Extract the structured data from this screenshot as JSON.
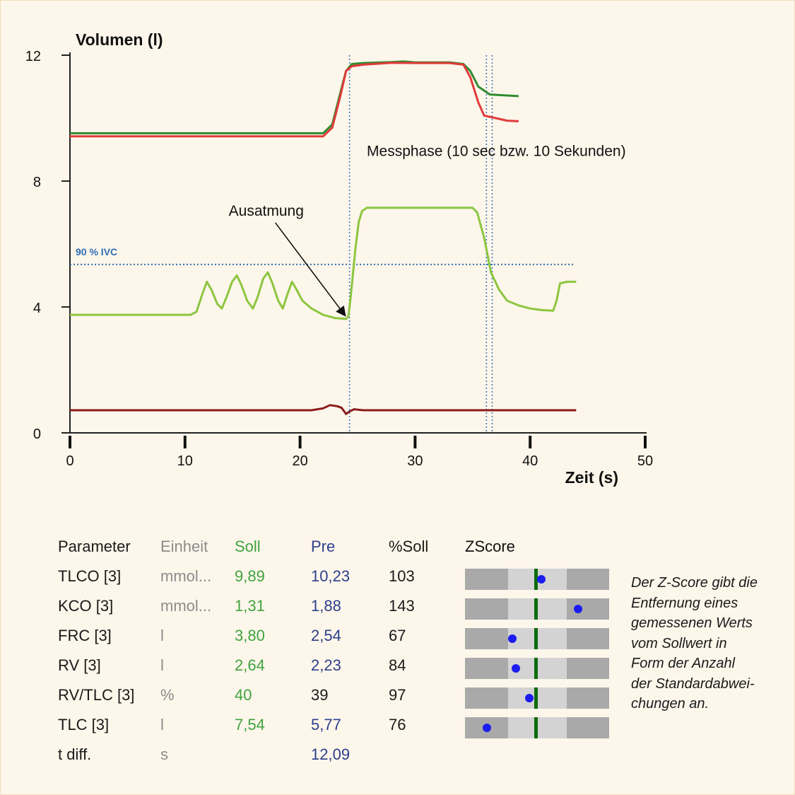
{
  "chart_data": {
    "type": "line",
    "ylabel": "Volumen (l)",
    "xlabel": "Zeit (s)",
    "xlim": [
      0,
      50
    ],
    "ylim": [
      0,
      12
    ],
    "x_ticks": [
      0,
      10,
      20,
      30,
      40,
      50
    ],
    "y_ticks": [
      0,
      4,
      8,
      12
    ],
    "grid": false,
    "series": [
      {
        "color": "#2e8b2e",
        "points": [
          [
            0,
            9.52
          ],
          [
            22,
            9.52
          ],
          [
            22.8,
            9.8
          ],
          [
            23.5,
            10.8
          ],
          [
            24,
            11.5
          ],
          [
            24.5,
            11.72
          ],
          [
            25.5,
            11.75
          ],
          [
            28,
            11.78
          ],
          [
            29,
            11.8
          ],
          [
            30,
            11.77
          ],
          [
            33,
            11.77
          ],
          [
            34.2,
            11.72
          ],
          [
            34.8,
            11.5
          ],
          [
            35.5,
            11.0
          ],
          [
            36.5,
            10.75
          ],
          [
            38,
            10.72
          ],
          [
            39,
            10.7
          ]
        ]
      },
      {
        "color": "#e03a3a",
        "points": [
          [
            0,
            9.42
          ],
          [
            22,
            9.42
          ],
          [
            22.8,
            9.7
          ],
          [
            23.5,
            10.7
          ],
          [
            24,
            11.5
          ],
          [
            24.5,
            11.65
          ],
          [
            25.5,
            11.7
          ],
          [
            28,
            11.76
          ],
          [
            30,
            11.75
          ],
          [
            33,
            11.75
          ],
          [
            34.2,
            11.7
          ],
          [
            34.8,
            11.3
          ],
          [
            35.5,
            10.5
          ],
          [
            36,
            10.08
          ],
          [
            37,
            10.0
          ],
          [
            38,
            9.92
          ],
          [
            39,
            9.9
          ]
        ]
      },
      {
        "color": "#8cc63f",
        "points": [
          [
            0,
            3.75
          ],
          [
            10.5,
            3.75
          ],
          [
            11,
            3.85
          ],
          [
            11.5,
            4.4
          ],
          [
            11.9,
            4.8
          ],
          [
            12.3,
            4.55
          ],
          [
            12.8,
            4.1
          ],
          [
            13.2,
            3.95
          ],
          [
            13.6,
            4.3
          ],
          [
            14.1,
            4.8
          ],
          [
            14.5,
            5.0
          ],
          [
            14.9,
            4.7
          ],
          [
            15.4,
            4.2
          ],
          [
            15.9,
            3.95
          ],
          [
            16.3,
            4.3
          ],
          [
            16.8,
            4.9
          ],
          [
            17.2,
            5.1
          ],
          [
            17.6,
            4.75
          ],
          [
            18.1,
            4.2
          ],
          [
            18.5,
            3.95
          ],
          [
            18.9,
            4.4
          ],
          [
            19.3,
            4.8
          ],
          [
            19.7,
            4.55
          ],
          [
            20.2,
            4.2
          ],
          [
            21,
            3.95
          ],
          [
            22,
            3.75
          ],
          [
            23,
            3.65
          ],
          [
            24,
            3.62
          ],
          [
            24.2,
            3.7
          ],
          [
            24.4,
            4.3
          ],
          [
            24.8,
            5.8
          ],
          [
            25.1,
            6.7
          ],
          [
            25.4,
            7.05
          ],
          [
            25.8,
            7.15
          ],
          [
            35,
            7.15
          ],
          [
            35.4,
            7.0
          ],
          [
            36,
            6.2
          ],
          [
            36.6,
            5.1
          ],
          [
            37.3,
            4.55
          ],
          [
            38,
            4.2
          ],
          [
            39,
            4.05
          ],
          [
            40,
            3.95
          ],
          [
            41,
            3.9
          ],
          [
            42,
            3.88
          ],
          [
            42.3,
            4.2
          ],
          [
            42.6,
            4.75
          ],
          [
            43.2,
            4.8
          ],
          [
            44,
            4.8
          ]
        ]
      },
      {
        "color": "#8b1a1a",
        "points": [
          [
            0,
            0.72
          ],
          [
            21,
            0.72
          ],
          [
            22,
            0.78
          ],
          [
            22.6,
            0.88
          ],
          [
            23.2,
            0.85
          ],
          [
            23.6,
            0.8
          ],
          [
            24,
            0.6
          ],
          [
            24.3,
            0.68
          ],
          [
            24.7,
            0.75
          ],
          [
            25.5,
            0.72
          ],
          [
            44,
            0.72
          ]
        ]
      }
    ],
    "reference_lines": {
      "horizontal": [
        {
          "y": 5.35,
          "label": "90 % IVC",
          "color": "#2f6fb8"
        }
      ],
      "vertical": [
        {
          "x": 24.3
        },
        {
          "x": 36.2
        },
        {
          "x": 36.7
        }
      ]
    },
    "annotations": [
      {
        "text": "Messphase (10 sec bzw. 10 Sekunden)",
        "x": 25.8,
        "y": 8.8
      },
      {
        "text": "Ausatmung",
        "x": 13.8,
        "y": 6.9,
        "arrow_to": [
          24.0,
          3.65
        ]
      }
    ]
  },
  "table": {
    "headers": {
      "param": "Parameter",
      "unit": "Einheit",
      "soll": "Soll",
      "pre": "Pre",
      "pct": "%Soll",
      "z": "ZScore"
    },
    "rows": [
      {
        "param": "TLCO [3]",
        "unit": "mmol...",
        "soll": "9,89",
        "pre": "10,23",
        "pct": "103",
        "z": 0.3
      },
      {
        "param": "KCO [3]",
        "unit": "mmol...",
        "soll": "1,31",
        "pre": "1,88",
        "pct": "143",
        "z": 2.35
      },
      {
        "param": "FRC [3]",
        "unit": "l",
        "soll": "3,80",
        "pre": "2,54",
        "pct": "67",
        "z": -1.3
      },
      {
        "param": "RV [3]",
        "unit": "l",
        "soll": "2,64",
        "pre": "2,23",
        "pct": "84",
        "z": -1.1
      },
      {
        "param": "RV/TLC [3]",
        "unit": "%",
        "soll": "40",
        "pre": "39",
        "pct": "97",
        "z": -0.35
      },
      {
        "param": "TLC [3]",
        "unit": "l",
        "soll": "7,54",
        "pre": "5,77",
        "pct": "76",
        "z": -2.7
      },
      {
        "param": "t diff.",
        "unit": "s",
        "soll": "",
        "pre": "12,09",
        "pct": ""
      }
    ]
  },
  "note": {
    "lines": [
      "Der Z-Score gibt die",
      "Entfernung eines",
      "gemessenen Werts",
      "vom Sollwert in",
      "Form der Anzahl",
      "der Standardabwei-",
      "chungen an."
    ]
  }
}
